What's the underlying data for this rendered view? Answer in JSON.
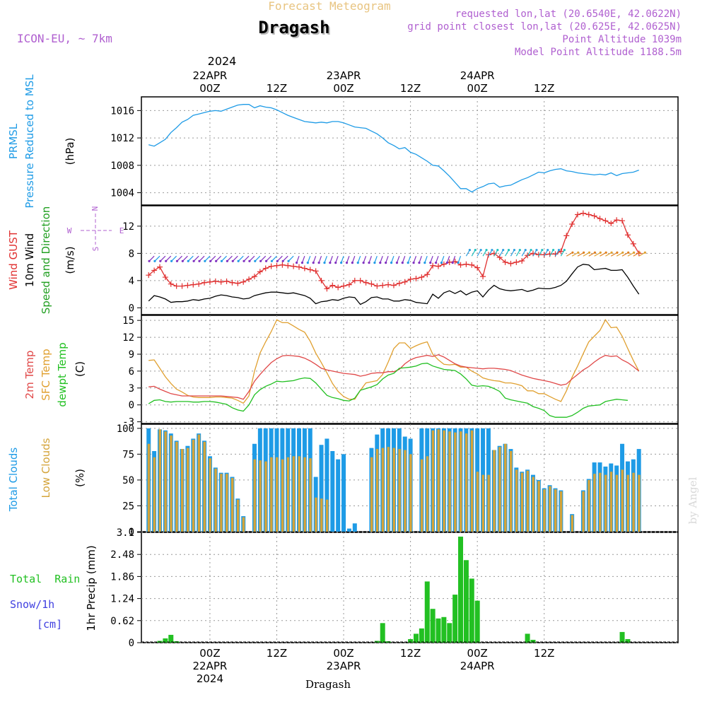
{
  "header": {
    "top_label": "Forecast Meteogram",
    "location": "Dragash",
    "model": "ICON-EU, ~ 7km",
    "requested": "requested lon,lat (20.6540E, 42.0622N)",
    "grid_point": "grid point closest lon,lat (20.625E, 42.0625N)",
    "point_altitude": "Point Altitude 1039m",
    "model_altitude": "Model Point Altitude 1188.5m",
    "footer": "Dragash",
    "watermark": "by Angel"
  },
  "colors": {
    "pressure": "#1e9be6",
    "gust": "#e03030",
    "wind": "#000000",
    "temp2m": "#e04848",
    "sfc_temp": "#e0a030",
    "dewpt": "#22c022",
    "total_clouds": "#1e9be6",
    "low_clouds": "#d4a43a",
    "precip": "#22c022",
    "purple": "#b060d0",
    "header_gold": "#e8c480"
  },
  "time_axis": {
    "top_year": "2024",
    "top_labels": [
      {
        "hour": 24,
        "lines": [
          "22APR",
          "00Z"
        ]
      },
      {
        "hour": 36,
        "lines": [
          "12Z"
        ]
      },
      {
        "hour": 48,
        "lines": [
          "23APR",
          "00Z"
        ]
      },
      {
        "hour": 60,
        "lines": [
          "12Z"
        ]
      },
      {
        "hour": 72,
        "lines": [
          "24APR",
          "00Z"
        ]
      },
      {
        "hour": 84,
        "lines": [
          "12Z"
        ]
      }
    ],
    "bottom_labels": [
      {
        "hour": 24,
        "lines": [
          "00Z",
          "22APR",
          "2024"
        ]
      },
      {
        "hour": 36,
        "lines": [
          "12Z"
        ]
      },
      {
        "hour": 48,
        "lines": [
          "00Z",
          "23APR"
        ]
      },
      {
        "hour": 60,
        "lines": [
          "12Z"
        ]
      },
      {
        "hour": 72,
        "lines": [
          "00Z",
          "24APR"
        ]
      },
      {
        "hour": 84,
        "lines": [
          "12Z"
        ]
      }
    ]
  },
  "chart_data": [
    {
      "type": "line",
      "panel": "pressure",
      "ylabels": [
        "PRMSL",
        "Pressure Reduced to MSL",
        "(hPa)"
      ],
      "yticks": [
        1004,
        1008,
        1012,
        1016
      ],
      "ylim": [
        1002.2,
        1018
      ],
      "x_hours_start": 13,
      "x_hours_step": 1,
      "series": [
        {
          "values": [
            1011,
            1010.8,
            1011.3,
            1011.8,
            1012.8,
            1013.5,
            1014.3,
            1014.7,
            1015.3,
            1015.5,
            1015.7,
            1015.9,
            1016.0,
            1015.9,
            1016.2,
            1016.5,
            1016.8,
            1016.9,
            1016.9,
            1016.4,
            1016.7,
            1016.5,
            1016.4,
            1016.1,
            1015.7,
            1015.3,
            1015,
            1014.7,
            1014.4,
            1014.3,
            1014.2,
            1014.3,
            1014.2,
            1014.4,
            1014.4,
            1014.2,
            1013.9,
            1013.6,
            1013.5,
            1013.4,
            1013.0,
            1012.6,
            1012.0,
            1011.3,
            1010.9,
            1010.4,
            1010.6,
            1009.9,
            1009.6,
            1009.1,
            1008.6,
            1008.0,
            1007.9,
            1007.2,
            1006.4,
            1005.5,
            1004.6,
            1004.6,
            1004.1,
            1004.6,
            1004.9,
            1005.3,
            1005.4,
            1004.8,
            1005.0,
            1005.1,
            1005.5,
            1005.9,
            1006.2,
            1006.6,
            1007.0,
            1006.9,
            1007.2,
            1007.4,
            1007.5,
            1007.2,
            1007.1,
            1006.9,
            1006.8,
            1006.7,
            1006.6,
            1006.7,
            1006.6,
            1006.9,
            1006.5,
            1006.8,
            1006.9,
            1007.0,
            1007.3
          ]
        }
      ]
    },
    {
      "type": "line",
      "panel": "wind",
      "ylabels": [
        "Wind GUST",
        "10m Wind",
        "Speed and Direction",
        "(m/s)"
      ],
      "compass": {
        "n": "N",
        "s": "S",
        "w": "W",
        "e": "E"
      },
      "yticks": [
        0,
        4,
        8,
        12
      ],
      "ylim": [
        -1,
        15
      ],
      "x_hours_start": 13,
      "x_hours_step": 1,
      "series": [
        {
          "values": [
            4.8,
            5.5,
            6.0,
            4.5,
            3.5,
            3.2,
            3.2,
            3.3,
            3.4,
            3.5,
            3.7,
            3.8,
            3.9,
            3.8,
            3.9,
            3.7,
            3.6,
            3.8,
            4.2,
            4.6,
            5.3,
            5.8,
            6.1,
            6.2,
            6.3,
            6.2,
            6.1,
            6.0,
            5.8,
            5.6,
            5.4,
            4.0,
            2.8,
            3.3,
            3.0,
            3.2,
            3.4,
            4.0,
            4.0,
            3.7,
            3.5,
            3.2,
            3.3,
            3.4,
            3.3,
            3.6,
            3.8,
            4.2,
            4.3,
            4.5,
            4.9,
            6.2,
            6.1,
            6.4,
            6.7,
            6.8,
            6.3,
            6.4,
            6.3,
            5.9,
            4.6,
            7.8,
            8.0,
            7.4,
            6.7,
            6.5,
            6.7,
            6.9,
            7.7,
            8.0,
            7.8,
            7.8,
            7.9,
            7.9,
            8.3,
            10.6,
            12.3,
            13.7,
            13.9,
            13.7,
            13.5,
            13.1,
            12.8,
            12.4,
            12.9,
            12.8,
            10.7,
            9.4,
            8.0
          ]
        },
        {
          "values": [
            1.0,
            1.8,
            1.6,
            1.3,
            0.8,
            0.9,
            0.9,
            1.0,
            1.2,
            1.1,
            1.3,
            1.4,
            1.7,
            1.9,
            1.8,
            1.6,
            1.5,
            1.3,
            1.4,
            1.8,
            2.0,
            2.2,
            2.3,
            2.3,
            2.2,
            2.1,
            2.2,
            2.0,
            1.8,
            1.4,
            0.6,
            0.9,
            1.0,
            1.2,
            1.1,
            1.4,
            1.6,
            1.5,
            0.5,
            0.9,
            1.5,
            1.6,
            1.3,
            1.3,
            1.0,
            1.0,
            1.2,
            1.1,
            0.8,
            0.7,
            0.6,
            2.0,
            1.4,
            2.2,
            2.5,
            2.1,
            2.5,
            1.9,
            2.3,
            2.5,
            1.6,
            2.6,
            3.3,
            2.8,
            2.6,
            2.5,
            2.6,
            2.7,
            2.4,
            2.6,
            2.9,
            2.8,
            2.8,
            3.0,
            3.3,
            3.9,
            5.0,
            6.0,
            6.4,
            6.3,
            5.6,
            5.7,
            5.8,
            5.5,
            5.5,
            5.6,
            4.5,
            3.2,
            2.0
          ]
        }
      ]
    },
    {
      "type": "line",
      "panel": "temperature",
      "ylabels": [
        "2m Temp",
        "SFC Temp",
        "dewpt Temp",
        "(C)"
      ],
      "yticks": [
        -3,
        0,
        3,
        6,
        9,
        12,
        15
      ],
      "ylim": [
        -3.3,
        15.9
      ],
      "x_hours_start": 13,
      "x_hours_step": 1,
      "series": [
        {
          "values": [
            3.2,
            3.3,
            2.8,
            2.4,
            2.0,
            1.8,
            1.6,
            1.6,
            1.6,
            1.6,
            1.6,
            1.6,
            1.6,
            1.6,
            1.5,
            1.4,
            1.3,
            1.0,
            2.4,
            4.2,
            5.4,
            6.5,
            7.5,
            8.2,
            8.7,
            8.8,
            8.7,
            8.6,
            8.3,
            7.8,
            7.2,
            6.5,
            6.2,
            6.0,
            5.8,
            5.6,
            5.5,
            5.4,
            5.1,
            5.3,
            5.6,
            5.7,
            5.7,
            5.9,
            5.9,
            6.3,
            7.3,
            8.0,
            8.4,
            8.6,
            8.8,
            8.6,
            8.9,
            8.5,
            7.9,
            7.3,
            6.9,
            6.7,
            6.6,
            6.5,
            6.4,
            6.5,
            6.5,
            6.4,
            6.3,
            6.1,
            5.7,
            5.3,
            5.0,
            4.7,
            4.5,
            4.3,
            4.1,
            3.8,
            3.5,
            3.7,
            4.6,
            5.4,
            6.2,
            6.8,
            7.6,
            8.3,
            8.8,
            8.6,
            8.7,
            8.0,
            7.5,
            6.8,
            6.0
          ]
        },
        {
          "values": [
            7.9,
            8.0,
            6.5,
            5.0,
            3.8,
            2.8,
            2.3,
            1.7,
            1.4,
            1.3,
            1.3,
            1.3,
            1.4,
            1.4,
            1.3,
            1.2,
            0.8,
            0.3,
            1.6,
            6.0,
            9.2,
            11.2,
            13.0,
            15.1,
            14.6,
            14.6,
            14.0,
            13.4,
            12.9,
            11.3,
            9.2,
            7.5,
            5.7,
            3.8,
            2.4,
            1.5,
            1.0,
            1.0,
            2.6,
            3.9,
            4.1,
            4.3,
            5.4,
            7.6,
            10.0,
            11.0,
            11.0,
            10.0,
            10.5,
            10.9,
            11.2,
            9.0,
            8.0,
            7.2,
            7.1,
            7.2,
            6.7,
            6.7,
            6.0,
            5.5,
            4.8,
            4.5,
            4.3,
            4.2,
            3.9,
            3.9,
            3.7,
            3.4,
            2.5,
            2.5,
            2.0,
            2.0,
            1.5,
            1.0,
            0.6,
            2.5,
            4.9,
            6.9,
            9.1,
            11.2,
            12.2,
            13.2,
            15.1,
            13.7,
            13.8,
            12.2,
            10.0,
            7.9,
            6.0
          ]
        },
        {
          "values": [
            0.2,
            0.8,
            0.9,
            0.6,
            0.5,
            0.6,
            0.6,
            0.6,
            0.5,
            0.5,
            0.6,
            0.6,
            0.5,
            0.3,
            0.1,
            -0.5,
            -0.9,
            -1.1,
            0.0,
            1.8,
            2.7,
            3.3,
            3.7,
            4.2,
            4.1,
            4.2,
            4.3,
            4.6,
            4.8,
            4.7,
            3.9,
            2.8,
            1.7,
            1.3,
            1.1,
            0.8,
            0.7,
            1.2,
            2.6,
            2.9,
            3.2,
            3.6,
            4.6,
            5.3,
            5.6,
            6.5,
            6.6,
            6.7,
            6.9,
            7.3,
            7.4,
            6.9,
            6.6,
            6.3,
            6.2,
            6.1,
            5.5,
            4.6,
            3.5,
            3.3,
            3.4,
            3.3,
            2.9,
            2.4,
            1.2,
            0.9,
            0.7,
            0.5,
            0.3,
            -0.3,
            -0.6,
            -1.0,
            -1.9,
            -2.2,
            -2.2,
            -2.2,
            -1.9,
            -1.3,
            -0.6,
            -0.2,
            -0.1,
            0.0,
            0.6,
            0.8,
            1.0,
            0.9,
            0.8
          ]
        }
      ]
    },
    {
      "type": "bar",
      "panel": "clouds",
      "ylabels": [
        "Total Clouds",
        "Low Clouds",
        "(%)"
      ],
      "yticks": [
        0,
        25,
        50,
        75,
        100
      ],
      "ylim": [
        0,
        104
      ],
      "x_hours_start": 13,
      "x_hours_step": 1,
      "series": [
        {
          "values": [
            100,
            78,
            99,
            98,
            95,
            88,
            80,
            83,
            90,
            95,
            88,
            73,
            62,
            57,
            57,
            53,
            32,
            15,
            0,
            85,
            100,
            100,
            100,
            100,
            100,
            100,
            100,
            100,
            100,
            100,
            53,
            84,
            90,
            78,
            70,
            75,
            3,
            8,
            0,
            0,
            81,
            94,
            100,
            100,
            100,
            100,
            92,
            90,
            0,
            100,
            100,
            100,
            100,
            100,
            100,
            100,
            100,
            100,
            100,
            100,
            100,
            100,
            79,
            83,
            85,
            80,
            62,
            58,
            60,
            55,
            50,
            42,
            45,
            42,
            40,
            0,
            17,
            0,
            40,
            51,
            67,
            67,
            63,
            66,
            64,
            85,
            68,
            70,
            80
          ]
        },
        {
          "values": [
            85,
            72,
            99,
            97,
            93,
            87,
            80,
            81,
            89,
            94,
            87,
            71,
            61,
            56,
            56,
            52,
            31,
            14,
            0,
            70,
            69,
            68,
            72,
            72,
            70,
            72,
            73,
            73,
            72,
            71,
            33,
            32,
            31,
            0,
            0,
            0,
            0,
            0,
            0,
            0,
            72,
            80,
            81,
            82,
            81,
            80,
            79,
            75,
            0,
            70,
            73,
            98,
            99,
            98,
            97,
            96,
            97,
            95,
            98,
            58,
            55,
            55,
            79,
            82,
            85,
            78,
            60,
            57,
            59,
            53,
            49,
            41,
            44,
            41,
            39,
            0,
            16,
            0,
            39,
            50,
            56,
            57,
            55,
            58,
            55,
            60,
            55,
            57,
            55
          ]
        }
      ]
    },
    {
      "type": "bar",
      "panel": "precipitation",
      "ylabels": [
        "1hr Precip (mm)"
      ],
      "left_labels": [
        "Total  Rain",
        "Snow/1h",
        "[cm]"
      ],
      "yticks": [
        0,
        0.62,
        1.24,
        1.86,
        2.48,
        3.1
      ],
      "ytick_labels": [
        "0",
        "0.62",
        "1.24",
        "1.86",
        "2.48",
        "3.1"
      ],
      "ylim": [
        0,
        3.1
      ],
      "x_hours_start": 13,
      "x_hours_step": 1,
      "series": [
        {
          "values": [
            0,
            0,
            0.05,
            0.12,
            0.22,
            0.04,
            0,
            0,
            0,
            0,
            0,
            0,
            0,
            0,
            0,
            0,
            0,
            0,
            0,
            0,
            0,
            0,
            0,
            0,
            0,
            0,
            0,
            0,
            0,
            0,
            0,
            0,
            0,
            0,
            0,
            0,
            0,
            0,
            0,
            0,
            0,
            0.05,
            0.55,
            0.04,
            0,
            0,
            0,
            0.1,
            0.25,
            0.4,
            1.72,
            0.95,
            0.68,
            0.72,
            0.55,
            1.35,
            2.98,
            2.32,
            1.8,
            1.18,
            0,
            0,
            0,
            0,
            0,
            0,
            0,
            0,
            0.25,
            0.08,
            0,
            0,
            0,
            0,
            0,
            0,
            0,
            0,
            0,
            0,
            0,
            0,
            0,
            0,
            0,
            0.3,
            0.1,
            0,
            0
          ]
        }
      ]
    }
  ]
}
